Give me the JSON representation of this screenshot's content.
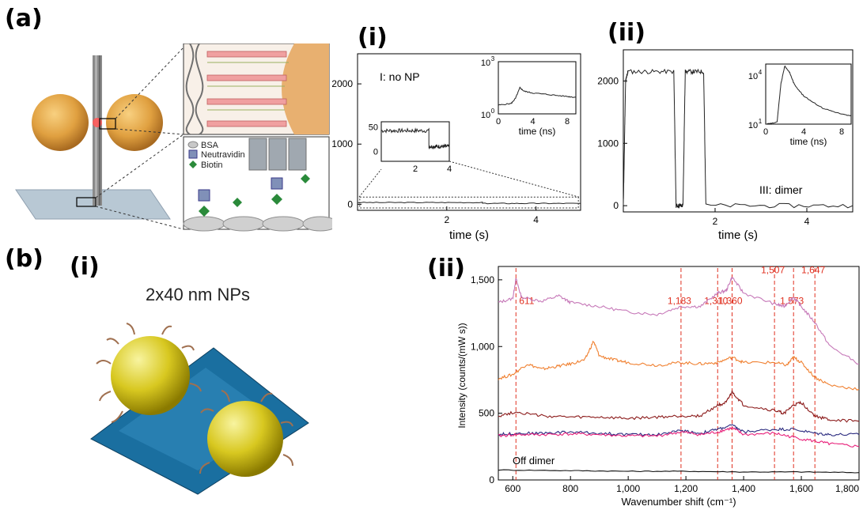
{
  "labels": {
    "a": "(a)",
    "a_i": "(i)",
    "a_ii": "(ii)",
    "b": "(b)",
    "b_i": "(i)",
    "b_ii": "(ii)"
  },
  "schematic_a": {
    "legend": [
      "BSA",
      "Neutravidin",
      "Biotin"
    ]
  },
  "schematic_b": {
    "title": "2x40 nm NPs"
  },
  "colors": {
    "gold": "#e0a040",
    "np_yellow": "#d8c820",
    "origami": "#1a6fa0",
    "dashed_red": "#e03020",
    "s1": "#c678b8",
    "s2": "#f08030",
    "s3": "#8b1a1a",
    "s4": "#2c2c80",
    "s5": "#e8207a",
    "s6": "#111111"
  },
  "chart_data": [
    {
      "id": "a-i",
      "type": "line",
      "xlabel": "time (s)",
      "ylabel": "",
      "xlim": [
        0,
        5
      ],
      "ylim": [
        -100,
        2500
      ],
      "xticks": [
        2,
        4
      ],
      "yticks": [
        0,
        1000,
        2000
      ],
      "annotation": "I: no NP",
      "series": [
        {
          "values_description": "",
          "x": [
            0,
            2.8,
            2.8,
            5
          ],
          "y": [
            30,
            30,
            15,
            15
          ]
        }
      ],
      "inset_zoom": {
        "xlim": [
          0,
          4
        ],
        "ylim": [
          -20,
          60
        ],
        "xticks": [
          2,
          4
        ],
        "yticks": [
          0,
          50
        ],
        "x": [
          0,
          2.8,
          2.8,
          4
        ],
        "y": [
          42,
          42,
          10,
          10
        ]
      },
      "inset_decay": {
        "xlabel": "time (ns)",
        "xlim": [
          0,
          9
        ],
        "yscale": "log",
        "xticks": [
          0,
          4,
          8
        ],
        "yticks": [
          "10",
          "10"
        ],
        "yticks_exp": [
          "0",
          "3"
        ],
        "x": [
          0,
          1.5,
          2.0,
          2.5,
          3,
          4,
          6,
          8,
          9
        ],
        "y": [
          0.5,
          0.6,
          0.9,
          1.5,
          1.3,
          1.2,
          1.1,
          1.0,
          0.95
        ]
      }
    },
    {
      "id": "a-ii",
      "type": "line",
      "xlabel": "time (s)",
      "ylabel": "",
      "xlim": [
        0,
        5
      ],
      "ylim": [
        -100,
        2500
      ],
      "xticks": [
        2,
        4
      ],
      "yticks": [
        0,
        1000,
        2000
      ],
      "annotation": "III: dimer",
      "series": [
        {
          "x": [
            0,
            0.05,
            0.1,
            1.1,
            1.15,
            1.3,
            1.35,
            1.75,
            1.8,
            5
          ],
          "y": [
            0,
            2000,
            2150,
            2150,
            0,
            0,
            2150,
            2150,
            0,
            0
          ]
        }
      ],
      "inset_decay": {
        "xlabel": "time (ns)",
        "xlim": [
          0,
          9
        ],
        "yscale": "log",
        "xticks": [
          0,
          4,
          8
        ],
        "yticks": [
          "10",
          "10"
        ],
        "yticks_exp": [
          "1",
          "4"
        ],
        "x": [
          0,
          1.2,
          1.6,
          2.0,
          2.5,
          3,
          4,
          6,
          8,
          9
        ],
        "y": [
          1.0,
          1.1,
          3.0,
          3.9,
          3.6,
          3.0,
          2.4,
          1.8,
          1.5,
          1.4
        ]
      }
    },
    {
      "id": "b-ii",
      "type": "line",
      "xlabel": "Wavenumber shift (cm⁻¹)",
      "ylabel": "Intensity (counts/(mW s))",
      "xlim": [
        550,
        1800
      ],
      "ylim": [
        0,
        1600
      ],
      "xticks": [
        600,
        800,
        1000,
        1200,
        1400,
        1600,
        1800
      ],
      "xtick_labels": [
        "600",
        "800",
        "1,000",
        "1,200",
        "1,400",
        "1,600",
        "1,800"
      ],
      "yticks": [
        0,
        500,
        1000,
        1500
      ],
      "ytick_labels": [
        "0",
        "500",
        "1,000",
        "1,500"
      ],
      "peak_lines": [
        611,
        1183,
        1310,
        1360,
        1507,
        1573,
        1647
      ],
      "peak_labels": [
        {
          "text": "611",
          "x": 611,
          "y": 1320
        },
        {
          "text": "1,183",
          "x": 1183,
          "y": 1320
        },
        {
          "text": "1,310",
          "x": 1310,
          "y": 1320
        },
        {
          "text": "1,360",
          "x": 1360,
          "y": 1320
        },
        {
          "text": "1,573",
          "x": 1573,
          "y": 1320
        },
        {
          "text": "1,507",
          "x": 1507,
          "y": 1550
        },
        {
          "text": "1,647",
          "x": 1647,
          "y": 1550
        }
      ],
      "annotation": "Off dimer",
      "series": [
        {
          "color_key": "s1",
          "x": [
            550,
            600,
            611,
            630,
            700,
            760,
            800,
            900,
            1000,
            1100,
            1183,
            1250,
            1310,
            1340,
            1360,
            1400,
            1507,
            1540,
            1573,
            1600,
            1647,
            1700,
            1800
          ],
          "y": [
            1330,
            1360,
            1510,
            1370,
            1340,
            1380,
            1330,
            1300,
            1260,
            1240,
            1300,
            1300,
            1400,
            1420,
            1520,
            1400,
            1320,
            1300,
            1370,
            1300,
            1180,
            1000,
            870
          ]
        },
        {
          "color_key": "s2",
          "x": [
            550,
            600,
            650,
            700,
            750,
            800,
            850,
            880,
            900,
            950,
            1000,
            1100,
            1183,
            1250,
            1310,
            1360,
            1400,
            1507,
            1550,
            1573,
            1600,
            1647,
            1700,
            1800
          ],
          "y": [
            760,
            790,
            870,
            830,
            850,
            870,
            900,
            1040,
            930,
            900,
            880,
            860,
            880,
            870,
            880,
            920,
            880,
            880,
            860,
            920,
            880,
            770,
            710,
            680
          ]
        },
        {
          "color_key": "s3",
          "x": [
            550,
            611,
            700,
            800,
            900,
            1000,
            1100,
            1183,
            1250,
            1310,
            1340,
            1360,
            1400,
            1507,
            1540,
            1573,
            1600,
            1647,
            1700,
            1800
          ],
          "y": [
            480,
            510,
            480,
            470,
            470,
            460,
            470,
            480,
            480,
            560,
            580,
            660,
            560,
            520,
            500,
            560,
            580,
            480,
            450,
            440
          ]
        },
        {
          "color_key": "s4",
          "x": [
            550,
            611,
            700,
            800,
            900,
            1000,
            1100,
            1183,
            1250,
            1310,
            1360,
            1400,
            1507,
            1573,
            1647,
            1700,
            1800
          ],
          "y": [
            340,
            350,
            350,
            360,
            350,
            340,
            340,
            370,
            350,
            380,
            410,
            360,
            380,
            380,
            350,
            340,
            340
          ]
        },
        {
          "color_key": "s5",
          "x": [
            550,
            611,
            700,
            800,
            900,
            1000,
            1100,
            1183,
            1250,
            1310,
            1360,
            1400,
            1507,
            1573,
            1647,
            1700,
            1800
          ],
          "y": [
            330,
            340,
            340,
            345,
            340,
            330,
            330,
            360,
            340,
            360,
            390,
            340,
            350,
            320,
            290,
            270,
            250
          ]
        },
        {
          "color_key": "s6",
          "x": [
            550,
            800,
            1000,
            1200,
            1400,
            1600,
            1800
          ],
          "y": [
            75,
            70,
            65,
            65,
            60,
            60,
            55
          ]
        }
      ]
    }
  ]
}
